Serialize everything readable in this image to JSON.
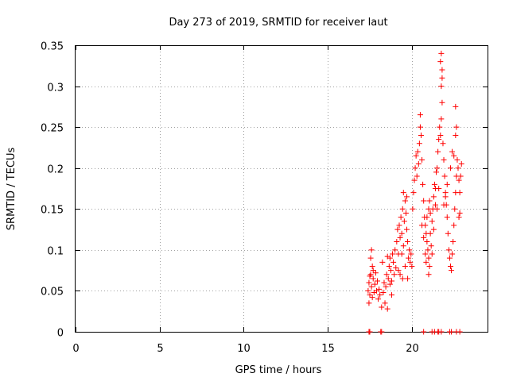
{
  "chart_data": {
    "type": "scatter",
    "title": "Day 273 of 2019, SRMTID for receiver laut",
    "xlabel": "GPS time / hours",
    "ylabel": "SRMTID / TECUs",
    "xlim": [
      0,
      24.5
    ],
    "ylim": [
      0,
      0.35
    ],
    "xticks": [
      "0",
      "5",
      "10",
      "15",
      "20"
    ],
    "yticks": [
      "0",
      "0.05",
      "0.1",
      "0.15",
      "0.2",
      "0.25",
      "0.3",
      "0.35"
    ],
    "grid": true,
    "marker": "+",
    "color": "#ff0000",
    "points": [
      [
        17.45,
        0.0
      ],
      [
        17.5,
        0.0
      ],
      [
        18.15,
        0.0
      ],
      [
        18.2,
        0.0
      ],
      [
        20.7,
        0.0
      ],
      [
        21.2,
        0.0
      ],
      [
        21.35,
        0.0
      ],
      [
        21.55,
        0.0
      ],
      [
        21.6,
        0.0
      ],
      [
        21.75,
        0.0
      ],
      [
        22.25,
        0.0
      ],
      [
        22.35,
        0.0
      ],
      [
        22.65,
        0.0
      ],
      [
        22.85,
        0.0
      ],
      [
        17.4,
        0.05
      ],
      [
        17.45,
        0.06
      ],
      [
        17.5,
        0.045
      ],
      [
        17.55,
        0.07
      ],
      [
        17.6,
        0.055
      ],
      [
        17.65,
        0.08
      ],
      [
        17.7,
        0.065
      ],
      [
        17.75,
        0.048
      ],
      [
        17.8,
        0.058
      ],
      [
        17.85,
        0.072
      ],
      [
        17.9,
        0.05
      ],
      [
        17.95,
        0.062
      ],
      [
        18.0,
        0.04
      ],
      [
        18.05,
        0.052
      ],
      [
        18.1,
        0.045
      ],
      [
        17.6,
        0.1
      ],
      [
        17.55,
        0.09
      ],
      [
        17.7,
        0.075
      ],
      [
        17.65,
        0.042
      ],
      [
        17.45,
        0.035
      ],
      [
        17.5,
        0.068
      ],
      [
        18.2,
        0.03
      ],
      [
        18.3,
        0.048
      ],
      [
        18.35,
        0.06
      ],
      [
        18.4,
        0.035
      ],
      [
        18.45,
        0.055
      ],
      [
        18.5,
        0.07
      ],
      [
        18.55,
        0.028
      ],
      [
        18.6,
        0.065
      ],
      [
        18.65,
        0.08
      ],
      [
        18.7,
        0.09
      ],
      [
        18.75,
        0.075
      ],
      [
        18.8,
        0.062
      ],
      [
        18.85,
        0.095
      ],
      [
        18.9,
        0.085
      ],
      [
        18.95,
        0.07
      ],
      [
        19.0,
        0.1
      ],
      [
        19.05,
        0.078
      ],
      [
        18.25,
        0.085
      ],
      [
        18.55,
        0.092
      ],
      [
        18.7,
        0.058
      ],
      [
        18.8,
        0.045
      ],
      [
        19.1,
        0.11
      ],
      [
        19.15,
        0.125
      ],
      [
        19.2,
        0.095
      ],
      [
        19.25,
        0.13
      ],
      [
        19.3,
        0.115
      ],
      [
        19.35,
        0.14
      ],
      [
        19.4,
        0.12
      ],
      [
        19.45,
        0.15
      ],
      [
        19.5,
        0.105
      ],
      [
        19.55,
        0.135
      ],
      [
        19.6,
        0.16
      ],
      [
        19.65,
        0.145
      ],
      [
        19.7,
        0.125
      ],
      [
        19.75,
        0.11
      ],
      [
        19.8,
        0.09
      ],
      [
        19.85,
        0.1
      ],
      [
        19.9,
        0.085
      ],
      [
        19.95,
        0.095
      ],
      [
        20.0,
        0.08
      ],
      [
        19.2,
        0.075
      ],
      [
        19.3,
        0.07
      ],
      [
        19.45,
        0.065
      ],
      [
        19.6,
        0.08
      ],
      [
        19.75,
        0.065
      ],
      [
        19.5,
        0.17
      ],
      [
        19.7,
        0.165
      ],
      [
        19.4,
        0.095
      ],
      [
        20.05,
        0.15
      ],
      [
        20.1,
        0.17
      ],
      [
        20.15,
        0.185
      ],
      [
        20.2,
        0.2
      ],
      [
        20.25,
        0.215
      ],
      [
        20.3,
        0.19
      ],
      [
        20.35,
        0.22
      ],
      [
        20.4,
        0.205
      ],
      [
        20.45,
        0.23
      ],
      [
        20.5,
        0.25
      ],
      [
        20.5,
        0.265
      ],
      [
        20.55,
        0.24
      ],
      [
        20.6,
        0.21
      ],
      [
        20.65,
        0.18
      ],
      [
        20.7,
        0.16
      ],
      [
        20.75,
        0.14
      ],
      [
        20.8,
        0.13
      ],
      [
        20.85,
        0.12
      ],
      [
        20.9,
        0.11
      ],
      [
        20.95,
        0.1
      ],
      [
        21.0,
        0.09
      ],
      [
        21.05,
        0.08
      ],
      [
        21.1,
        0.12
      ],
      [
        21.15,
        0.105
      ],
      [
        21.2,
        0.135
      ],
      [
        21.25,
        0.15
      ],
      [
        21.3,
        0.165
      ],
      [
        21.35,
        0.18
      ],
      [
        21.4,
        0.175
      ],
      [
        21.45,
        0.195
      ],
      [
        21.5,
        0.2
      ],
      [
        21.55,
        0.22
      ],
      [
        21.6,
        0.235
      ],
      [
        21.65,
        0.25
      ],
      [
        21.7,
        0.24
      ],
      [
        21.75,
        0.26
      ],
      [
        21.8,
        0.28
      ],
      [
        21.75,
        0.3
      ],
      [
        21.8,
        0.31
      ],
      [
        21.7,
        0.33
      ],
      [
        21.75,
        0.34
      ],
      [
        21.8,
        0.32
      ],
      [
        21.85,
        0.23
      ],
      [
        21.9,
        0.21
      ],
      [
        21.95,
        0.19
      ],
      [
        22.0,
        0.17
      ],
      [
        22.05,
        0.155
      ],
      [
        22.1,
        0.14
      ],
      [
        22.15,
        0.12
      ],
      [
        22.2,
        0.1
      ],
      [
        22.25,
        0.09
      ],
      [
        22.3,
        0.08
      ],
      [
        22.35,
        0.075
      ],
      [
        22.4,
        0.095
      ],
      [
        22.45,
        0.11
      ],
      [
        22.5,
        0.13
      ],
      [
        22.55,
        0.15
      ],
      [
        22.6,
        0.17
      ],
      [
        22.65,
        0.19
      ],
      [
        22.7,
        0.21
      ],
      [
        22.75,
        0.2
      ],
      [
        22.8,
        0.185
      ],
      [
        22.85,
        0.17
      ],
      [
        22.9,
        0.19
      ],
      [
        22.95,
        0.205
      ],
      [
        22.6,
        0.275
      ],
      [
        22.65,
        0.25
      ],
      [
        22.6,
        0.24
      ],
      [
        22.8,
        0.14
      ],
      [
        22.85,
        0.145
      ],
      [
        20.6,
        0.13
      ],
      [
        20.7,
        0.115
      ],
      [
        20.8,
        0.095
      ],
      [
        20.9,
        0.14
      ],
      [
        21.0,
        0.15
      ],
      [
        21.05,
        0.16
      ],
      [
        21.1,
        0.145
      ],
      [
        21.3,
        0.125
      ],
      [
        21.5,
        0.15
      ],
      [
        21.6,
        0.175
      ],
      [
        21.9,
        0.155
      ],
      [
        22.0,
        0.165
      ],
      [
        22.1,
        0.18
      ],
      [
        22.3,
        0.2
      ],
      [
        22.4,
        0.22
      ],
      [
        22.5,
        0.215
      ],
      [
        21.4,
        0.155
      ],
      [
        21.2,
        0.095
      ],
      [
        21.0,
        0.07
      ],
      [
        20.85,
        0.085
      ]
    ]
  }
}
